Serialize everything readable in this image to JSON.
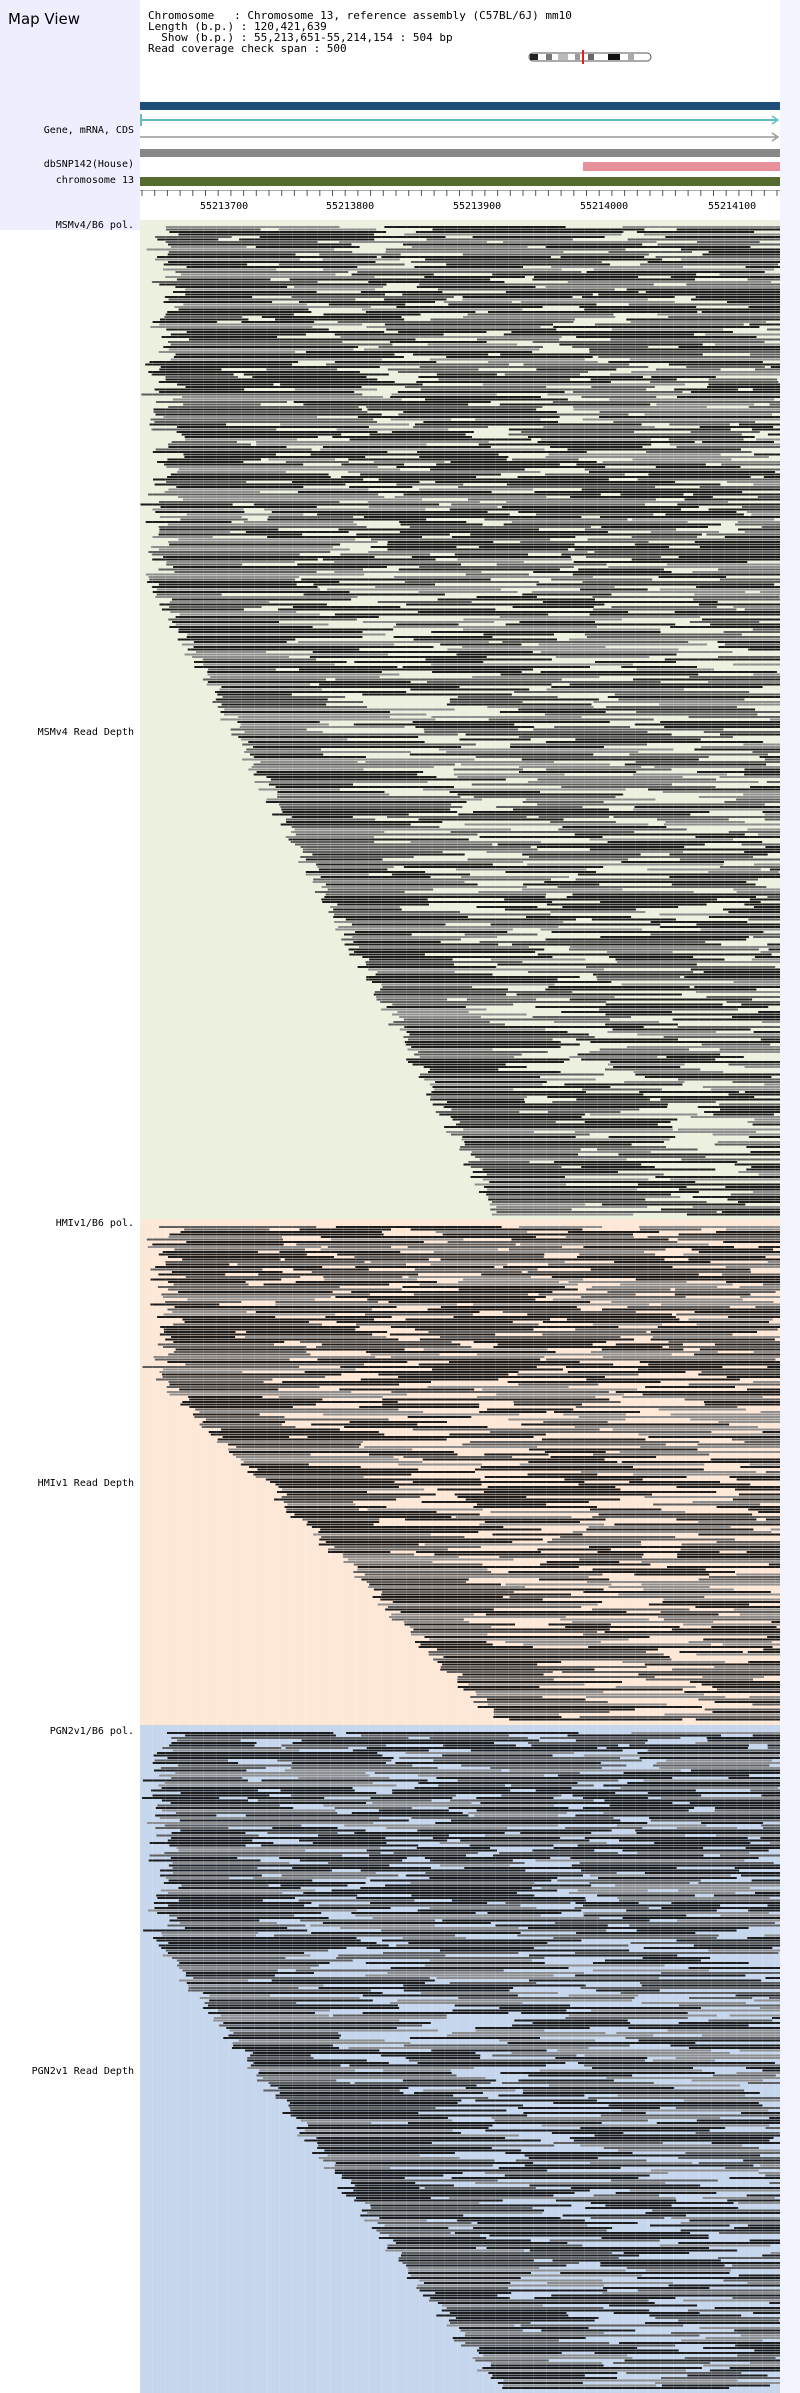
{
  "header": {
    "title": "Map View",
    "chromosome_line": "Chromosome   : Chromosome 13, reference assembly (C57BL/6J) mm10",
    "length_line": "Length (b.p.) : 120,421,639",
    "show_line": "  Show (b.p.) : 55,213,651-55,214,154 : 504 bp",
    "coverage_line": "Read coverage check span : 500"
  },
  "tracks": {
    "gene_label": "Gene, mRNA, CDS",
    "snp_label": "dbSNP142(House)",
    "chrom_label": "chromosome 13"
  },
  "ruler": {
    "ticks": [
      "55213700",
      "55213800",
      "55213900",
      "55214000",
      "55214100"
    ]
  },
  "panels": [
    {
      "pol_label": "MSMv4/B6 pol.",
      "depth_label": "MSMv4 Read Depth",
      "bg": "#ebf0df"
    },
    {
      "pol_label": "HMIv1/B6 pol.",
      "depth_label": "HMIv1 Read Depth",
      "bg": "#fde8d8"
    },
    {
      "pol_label": "PGN2v1/B6 pol.",
      "depth_label": "PGN2v1 Read Depth",
      "bg": "#c6d7ed"
    }
  ],
  "colors": {
    "gene_bar": "#1f4e79",
    "mrna_line": "#66bbbb",
    "gray_bar": "#888888",
    "snp_bar": "#e8909a",
    "chrom_bar": "#556b2f",
    "read_dark": "#1c1c1c",
    "read_mid": "#5e5e5e",
    "read_light": "#8e8e8e"
  }
}
